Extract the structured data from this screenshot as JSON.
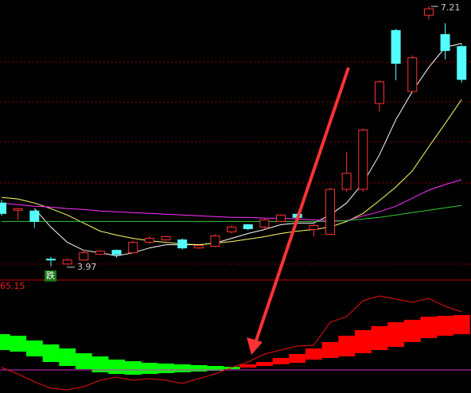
{
  "chart_data": [
    {
      "type": "candlestick",
      "ylim": [
        3.8,
        7.29
      ],
      "up_color": "#ff3232",
      "down_color": "#54ffff",
      "open": [
        4.76,
        4.67,
        4.66,
        4.06,
        4.0,
        4.05,
        4.12,
        4.17,
        4.14,
        4.27,
        4.3,
        4.3,
        4.2,
        4.22,
        4.4,
        4.49,
        4.46,
        4.53,
        4.62,
        4.43,
        4.37,
        4.93,
        4.93,
        6.0,
        6.91,
        6.15,
        7.1,
        6.86,
        6.71
      ],
      "close": [
        4.63,
        4.69,
        4.53,
        4.05,
        4.05,
        4.14,
        4.16,
        4.12,
        4.27,
        4.32,
        4.34,
        4.2,
        4.23,
        4.35,
        4.46,
        4.44,
        4.55,
        4.61,
        4.58,
        4.48,
        4.93,
        5.13,
        5.67,
        6.27,
        6.5,
        6.57,
        7.18,
        6.66,
        6.3
      ],
      "high": [
        4.8,
        4.7,
        4.67,
        4.09,
        4.07,
        4.17,
        4.17,
        4.18,
        4.29,
        4.35,
        4.35,
        4.32,
        4.24,
        4.37,
        4.48,
        4.5,
        4.57,
        4.62,
        4.63,
        4.5,
        4.95,
        5.4,
        5.69,
        6.29,
        6.93,
        6.6,
        7.21,
        7.0,
        6.74
      ],
      "low": [
        4.6,
        4.55,
        4.45,
        3.97,
        3.99,
        4.04,
        4.11,
        4.08,
        4.13,
        4.25,
        4.29,
        4.18,
        4.19,
        4.21,
        4.38,
        4.42,
        4.44,
        4.52,
        4.56,
        4.34,
        4.36,
        4.9,
        4.9,
        5.9,
        6.29,
        6.13,
        7.05,
        6.55,
        6.26
      ],
      "series": [
        {
          "color": "#ffffff",
          "values": [
            null,
            null,
            4.69,
            4.46,
            4.27,
            4.17,
            4.14,
            4.1,
            4.14,
            4.2,
            4.24,
            4.24,
            4.24,
            4.26,
            4.32,
            4.38,
            4.43,
            4.49,
            4.51,
            4.51,
            4.61,
            4.76,
            5.01,
            5.36,
            5.8,
            6.15,
            6.45,
            6.7,
            6.75
          ]
        },
        {
          "color": "#ffff66",
          "values": [
            4.83,
            4.81,
            4.76,
            4.69,
            4.61,
            4.51,
            4.41,
            4.36,
            4.32,
            4.29,
            4.27,
            4.25,
            4.24,
            4.26,
            4.28,
            4.31,
            4.34,
            4.38,
            4.41,
            4.43,
            4.46,
            4.53,
            4.63,
            4.79,
            4.96,
            5.16,
            5.46,
            5.75,
            6.05
          ]
        },
        {
          "color": "#ff33ff",
          "values": [
            4.76,
            4.74,
            4.72,
            4.71,
            4.69,
            4.68,
            4.66,
            4.65,
            4.64,
            4.63,
            4.62,
            4.61,
            4.6,
            4.59,
            4.58,
            4.58,
            4.57,
            4.57,
            4.56,
            4.55,
            4.54,
            4.54,
            4.6,
            4.65,
            4.72,
            4.82,
            4.92,
            4.99,
            5.05
          ]
        },
        {
          "color": "#33cc33",
          "values": [
            4.53,
            4.53,
            4.53,
            4.53,
            4.53,
            4.53,
            4.53,
            4.53,
            4.53,
            4.53,
            4.53,
            4.53,
            4.53,
            4.53,
            4.53,
            4.53,
            4.53,
            4.53,
            4.53,
            4.53,
            4.53,
            4.54,
            4.56,
            4.58,
            4.61,
            4.64,
            4.67,
            4.7,
            4.73
          ]
        }
      ],
      "max_label": 7.21,
      "min_label": 3.97,
      "signal_label": "跌"
    },
    {
      "type": "ribbon",
      "ylim": [
        0,
        65.15
      ],
      "yticks": [
        65.15
      ],
      "rise_color": "#ff0000",
      "fall_color": "#00ff00",
      "line_color": "#ee1111",
      "reference_color": "#cc33cc",
      "upper": [
        33.95,
        33.03,
        30.28,
        27.99,
        25.69,
        22.94,
        21.1,
        19.27,
        18.35,
        17.43,
        16.98,
        16.52,
        16.06,
        15.6,
        15.14,
        16.52,
        17.89,
        20.19,
        22.48,
        25.69,
        29.36,
        33.03,
        36.25,
        38.54,
        40.83,
        42.21,
        44.04,
        44.5,
        44.96
      ],
      "lower": [
        24.78,
        23.86,
        21.1,
        17.89,
        15.6,
        13.76,
        11.93,
        11.01,
        10.55,
        11.01,
        11.47,
        11.93,
        12.39,
        12.85,
        13.76,
        14.68,
        15.6,
        16.52,
        17.43,
        19.27,
        20.19,
        21.1,
        22.94,
        24.78,
        26.61,
        29.36,
        31.66,
        33.03,
        33.95
      ],
      "signal": [
        14.68,
        11.01,
        6.42,
        2.75,
        1.84,
        3.67,
        7.34,
        9.18,
        7.34,
        8.26,
        7.34,
        5.51,
        8.26,
        11.01,
        14.68,
        17.89,
        22.48,
        24.78,
        27.07,
        27.53,
        40.83,
        44.04,
        53.22,
        55.97,
        54.19,
        52.3,
        54.6,
        50.01,
        46.8
      ],
      "reference": 13.3
    }
  ]
}
